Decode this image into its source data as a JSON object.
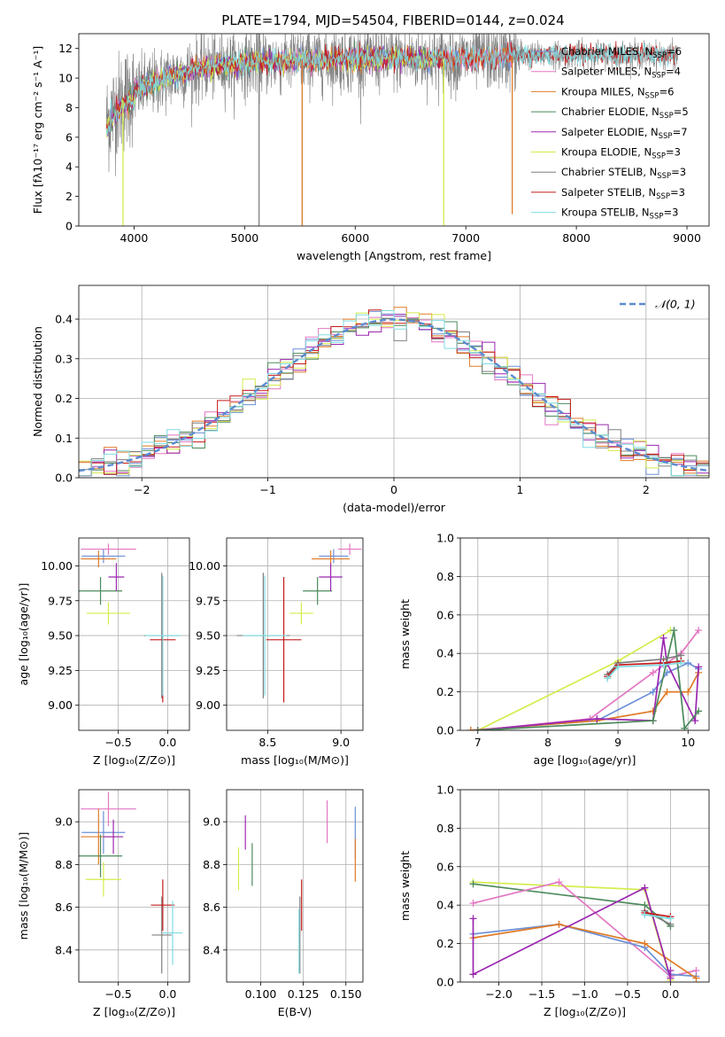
{
  "figure_title": "PLATE=1794, MJD=54504, FIBERID=0144, z=0.024",
  "colors": {
    "Chabrier MILES": "#6b8fd6",
    "Salpeter MILES": "#e377c2",
    "Kroupa MILES": "#e07b27",
    "Chabrier ELODIE": "#4c8a5c",
    "Salpeter ELODIE": "#9b27b0",
    "Kroupa ELODIE": "#d4ec4a",
    "Chabrier STELIB": "#7f7f7f",
    "Salpeter STELIB": "#c41a1a",
    "Kroupa STELIB": "#7fdbe0",
    "normal": "#5b8bd0"
  },
  "chart_data": [
    {
      "id": "spectrum",
      "type": "line",
      "title": "PLATE=1794, MJD=54504, FIBERID=0144, z=0.024",
      "xlabel": "wavelength [Angstrom, rest frame]",
      "ylabel": "Flux [fλ10⁻¹⁷ erg cm⁻² s⁻¹ A⁻¹]",
      "xlim": [
        3500,
        9200
      ],
      "ylim": [
        0,
        13
      ],
      "xticks": [
        4000,
        5000,
        6000,
        7000,
        8000,
        9000
      ],
      "yticks": [
        0,
        2,
        4,
        6,
        8,
        10,
        12
      ],
      "grid": false,
      "legend_position": "top-right",
      "legend": [
        {
          "label": "Chabrier MILES, N",
          "sub": "SSP",
          "n": "=6",
          "color_key": "Chabrier MILES"
        },
        {
          "label": "Salpeter MILES, N",
          "sub": "SSP",
          "n": "=4",
          "color_key": "Salpeter MILES"
        },
        {
          "label": "Kroupa MILES, N",
          "sub": "SSP",
          "n": "=6",
          "color_key": "Kroupa MILES"
        },
        {
          "label": "Chabrier ELODIE, N",
          "sub": "SSP",
          "n": "=5",
          "color_key": "Chabrier ELODIE"
        },
        {
          "label": "Salpeter ELODIE, N",
          "sub": "SSP",
          "n": "=7",
          "color_key": "Salpeter ELODIE"
        },
        {
          "label": "Kroupa ELODIE, N",
          "sub": "SSP",
          "n": "=3",
          "color_key": "Kroupa ELODIE"
        },
        {
          "label": "Chabrier STELIB, N",
          "sub": "SSP",
          "n": "=3",
          "color_key": "Chabrier STELIB"
        },
        {
          "label": "Salpeter STELIB, N",
          "sub": "SSP",
          "n": "=3",
          "color_key": "Salpeter STELIB"
        },
        {
          "label": "Kroupa STELIB, N",
          "sub": "SSP",
          "n": "=3",
          "color_key": "Kroupa STELIB"
        }
      ],
      "continuum": [
        [
          3750,
          7.0
        ],
        [
          3850,
          8.2
        ],
        [
          3950,
          8.8
        ],
        [
          4100,
          9.4
        ],
        [
          4300,
          10.0
        ],
        [
          4600,
          10.7
        ],
        [
          5000,
          11.0
        ],
        [
          5500,
          11.2
        ],
        [
          6000,
          11.3
        ],
        [
          6500,
          11.3
        ],
        [
          7000,
          11.3
        ],
        [
          7500,
          11.5
        ],
        [
          8000,
          11.6
        ],
        [
          8500,
          11.6
        ],
        [
          8900,
          11.5
        ]
      ],
      "spikes": [
        {
          "x": 3900,
          "y": 0,
          "series": "Kroupa ELODIE"
        },
        {
          "x": 5130,
          "y": 0,
          "series": "Chabrier STELIB"
        },
        {
          "x": 5520,
          "y": 0,
          "series": "Kroupa MILES"
        },
        {
          "x": 6800,
          "y": 0,
          "series": "Kroupa ELODIE"
        },
        {
          "x": 7420,
          "y": 0.8,
          "series": "Kroupa MILES"
        }
      ]
    },
    {
      "id": "residuals",
      "type": "line",
      "xlabel": "(data-model)/error",
      "ylabel": "Normed distribution",
      "xlim": [
        -2.5,
        2.5
      ],
      "ylim": [
        0,
        0.485
      ],
      "xticks": [
        -2,
        -1,
        0,
        1,
        2
      ],
      "yticks": [
        0.0,
        0.1,
        0.2,
        0.3,
        0.4
      ],
      "grid": true,
      "legend_position": "top-right",
      "legend": [
        {
          "label": "𝒩(0, 1)",
          "color_key": "normal"
        }
      ],
      "bin_width": 0.1
    },
    {
      "id": "age_vs_Z",
      "type": "scatter",
      "xlabel": "Z [log₁₀(Z/Z⊙)]",
      "ylabel": "age  [log₁₀(age/yr)]",
      "xlim": [
        -0.9,
        0.22
      ],
      "ylim": [
        8.82,
        10.2
      ],
      "xticks": [
        -0.5,
        0.0
      ],
      "yticks": [
        9.0,
        9.25,
        9.5,
        9.75,
        10.0
      ],
      "grid": true,
      "points": [
        {
          "series": "Chabrier MILES",
          "x": -0.65,
          "y": 10.07,
          "xerr": 0.22,
          "yerr": 0.05
        },
        {
          "series": "Salpeter MILES",
          "x": -0.6,
          "y": 10.12,
          "xerr": 0.28,
          "yerr": 0.04
        },
        {
          "series": "Kroupa MILES",
          "x": -0.7,
          "y": 10.05,
          "xerr": 0.18,
          "yerr": 0.06
        },
        {
          "series": "Chabrier ELODIE",
          "x": -0.68,
          "y": 9.82,
          "xerr": 0.22,
          "yerr": 0.1
        },
        {
          "series": "Salpeter ELODIE",
          "x": -0.52,
          "y": 9.92,
          "xerr": 0.08,
          "yerr": 0.1
        },
        {
          "series": "Kroupa ELODIE",
          "x": -0.6,
          "y": 9.66,
          "xerr": 0.22,
          "yerr": 0.08
        },
        {
          "series": "Chabrier STELIB",
          "x": -0.06,
          "y": 9.5,
          "xerr": 0.18,
          "yerr": 0.45
        },
        {
          "series": "Salpeter STELIB",
          "x": -0.05,
          "y": 9.47,
          "xerr": 0.13,
          "yerr": 0.45
        },
        {
          "series": "Kroupa STELIB",
          "x": -0.05,
          "y": 9.5,
          "xerr": 0.18,
          "yerr": 0.43
        }
      ]
    },
    {
      "id": "age_vs_mass",
      "type": "scatter",
      "xlabel": "mass [log₁₀(M/M⊙)]",
      "xlim": [
        8.22,
        9.15
      ],
      "ylim": [
        8.82,
        10.2
      ],
      "xticks": [
        8.5,
        9.0
      ],
      "yticks": [
        9.0,
        9.25,
        9.5,
        9.75,
        10.0
      ],
      "grid": true,
      "points": [
        {
          "series": "Chabrier MILES",
          "x": 8.95,
          "y": 10.07,
          "xerr": 0.1,
          "yerr": 0.05
        },
        {
          "series": "Salpeter MILES",
          "x": 9.06,
          "y": 10.12,
          "xerr": 0.08,
          "yerr": 0.04
        },
        {
          "series": "Kroupa MILES",
          "x": 8.93,
          "y": 10.05,
          "xerr": 0.13,
          "yerr": 0.06
        },
        {
          "series": "Chabrier ELODIE",
          "x": 8.84,
          "y": 9.82,
          "xerr": 0.1,
          "yerr": 0.1
        },
        {
          "series": "Salpeter ELODIE",
          "x": 8.93,
          "y": 9.92,
          "xerr": 0.08,
          "yerr": 0.1
        },
        {
          "series": "Kroupa ELODIE",
          "x": 8.73,
          "y": 9.66,
          "xerr": 0.08,
          "yerr": 0.08
        },
        {
          "series": "Chabrier STELIB",
          "x": 8.47,
          "y": 9.5,
          "xerr": 0.18,
          "yerr": 0.45
        },
        {
          "series": "Salpeter STELIB",
          "x": 8.61,
          "y": 9.47,
          "xerr": 0.12,
          "yerr": 0.45
        },
        {
          "series": "Kroupa STELIB",
          "x": 8.48,
          "y": 9.5,
          "xerr": 0.15,
          "yerr": 0.43
        }
      ]
    },
    {
      "id": "weight_vs_age",
      "type": "line",
      "xlabel": "age  [log₁₀(age/yr)]",
      "ylabel": "mass weight",
      "xlim": [
        6.75,
        10.3
      ],
      "ylim": [
        0,
        1
      ],
      "xticks": [
        7,
        8,
        9,
        10
      ],
      "yticks": [
        0.0,
        0.2,
        0.4,
        0.6,
        0.8,
        1.0
      ],
      "grid": true,
      "series": [
        {
          "name": "Kroupa ELODIE",
          "x": [
            7.0,
            9.0,
            9.75
          ],
          "y": [
            0.0,
            0.36,
            0.52
          ]
        },
        {
          "name": "Chabrier MILES",
          "x": [
            6.9,
            8.7,
            9.5,
            9.7,
            10.0,
            10.15
          ],
          "y": [
            0.0,
            0.05,
            0.2,
            0.3,
            0.35,
            0.32
          ]
        },
        {
          "name": "Kroupa MILES",
          "x": [
            6.9,
            8.7,
            9.5,
            9.7,
            10.0,
            10.15
          ],
          "y": [
            0.0,
            0.05,
            0.1,
            0.2,
            0.2,
            0.3
          ]
        },
        {
          "name": "Salpeter MILES",
          "x": [
            7.0,
            8.6,
            9.5,
            9.9,
            10.15
          ],
          "y": [
            0.0,
            0.06,
            0.3,
            0.4,
            0.52
          ]
        },
        {
          "name": "Salpeter ELODIE",
          "x": [
            7.0,
            8.7,
            9.5,
            9.65,
            9.7,
            10.1,
            10.15
          ],
          "y": [
            0.0,
            0.06,
            0.05,
            0.48,
            0.35,
            0.05,
            0.33
          ]
        },
        {
          "name": "Chabrier ELODIE",
          "x": [
            7.0,
            9.5,
            9.8,
            9.95,
            10.15
          ],
          "y": [
            0.0,
            0.05,
            0.52,
            0.01,
            0.1
          ]
        },
        {
          "name": "Chabrier STELIB",
          "x": [
            8.85,
            9.0,
            9.65,
            9.9
          ],
          "y": [
            0.29,
            0.35,
            0.37,
            0.39
          ]
        },
        {
          "name": "Salpeter STELIB",
          "x": [
            8.85,
            9.0,
            9.65,
            9.9
          ],
          "y": [
            0.28,
            0.34,
            0.35,
            0.36
          ]
        },
        {
          "name": "Kroupa STELIB",
          "x": [
            8.85,
            9.0,
            9.65,
            9.9
          ],
          "y": [
            0.27,
            0.33,
            0.34,
            0.35
          ]
        }
      ]
    },
    {
      "id": "mass_vs_Z",
      "type": "scatter",
      "xlabel": "Z [log₁₀(Z/Z⊙)]",
      "ylabel": "mass [log₁₀(M/M⊙)]",
      "xlim": [
        -0.9,
        0.22
      ],
      "ylim": [
        8.25,
        9.15
      ],
      "xticks": [
        -0.5,
        0.0
      ],
      "yticks": [
        8.4,
        8.6,
        8.8,
        9.0
      ],
      "grid": true,
      "points": [
        {
          "series": "Chabrier MILES",
          "x": -0.65,
          "y": 8.95,
          "xerr": 0.22,
          "yerr": 0.1
        },
        {
          "series": "Salpeter MILES",
          "x": -0.6,
          "y": 9.06,
          "xerr": 0.28,
          "yerr": 0.08
        },
        {
          "series": "Kroupa MILES",
          "x": -0.7,
          "y": 8.93,
          "xerr": 0.18,
          "yerr": 0.13
        },
        {
          "series": "Chabrier ELODIE",
          "x": -0.68,
          "y": 8.84,
          "xerr": 0.22,
          "yerr": 0.1
        },
        {
          "series": "Salpeter ELODIE",
          "x": -0.55,
          "y": 8.93,
          "xerr": 0.1,
          "yerr": 0.08
        },
        {
          "series": "Kroupa ELODIE",
          "x": -0.65,
          "y": 8.73,
          "xerr": 0.18,
          "yerr": 0.08
        },
        {
          "series": "Chabrier STELIB",
          "x": -0.06,
          "y": 8.47,
          "xerr": 0.1,
          "yerr": 0.18
        },
        {
          "series": "Salpeter STELIB",
          "x": -0.05,
          "y": 8.61,
          "xerr": 0.12,
          "yerr": 0.12
        },
        {
          "series": "Kroupa STELIB",
          "x": 0.05,
          "y": 8.48,
          "xerr": 0.1,
          "yerr": 0.15
        }
      ]
    },
    {
      "id": "mass_vs_ebv",
      "type": "scatter",
      "xlabel": "E(B-V)",
      "xlim": [
        0.08,
        0.16
      ],
      "ylim": [
        8.25,
        9.15
      ],
      "xticks": [
        0.1,
        0.125,
        0.15
      ],
      "yticks": [
        8.4,
        8.6,
        8.8,
        9.0
      ],
      "grid": true,
      "points": [
        {
          "series": "Chabrier MILES",
          "x": 0.1555,
          "y": 8.95,
          "yerr": 0.12
        },
        {
          "series": "Salpeter MILES",
          "x": 0.139,
          "y": 9.0,
          "yerr": 0.1
        },
        {
          "series": "Kroupa MILES",
          "x": 0.1555,
          "y": 8.82,
          "yerr": 0.1
        },
        {
          "series": "Chabrier ELODIE",
          "x": 0.095,
          "y": 8.8,
          "yerr": 0.1
        },
        {
          "series": "Salpeter ELODIE",
          "x": 0.091,
          "y": 8.95,
          "yerr": 0.08
        },
        {
          "series": "Kroupa ELODIE",
          "x": 0.087,
          "y": 8.78,
          "yerr": 0.1
        },
        {
          "series": "Chabrier STELIB",
          "x": 0.123,
          "y": 8.47,
          "yerr": 0.18
        },
        {
          "series": "Salpeter STELIB",
          "x": 0.124,
          "y": 8.61,
          "yerr": 0.12
        },
        {
          "series": "Kroupa STELIB",
          "x": 0.1225,
          "y": 8.44,
          "yerr": 0.15
        }
      ]
    },
    {
      "id": "weight_vs_Z",
      "type": "line",
      "xlabel": "Z [log₁₀(Z/Z⊙)]",
      "ylabel": "mass weight",
      "xlim": [
        -2.45,
        0.45
      ],
      "ylim": [
        0,
        1
      ],
      "xticks": [
        -2.0,
        -1.5,
        -1.0,
        -0.5,
        0.0
      ],
      "yticks": [
        0.0,
        0.2,
        0.4,
        0.6,
        0.8,
        1.0
      ],
      "grid": true,
      "series": [
        {
          "name": "Kroupa ELODIE",
          "x": [
            -2.3,
            -0.3,
            0.0
          ],
          "y": [
            0.52,
            0.48,
            0.01
          ]
        },
        {
          "name": "Chabrier ELODIE",
          "x": [
            -2.3,
            -0.3,
            0.0
          ],
          "y": [
            0.51,
            0.4,
            0.29
          ]
        },
        {
          "name": "Salpeter MILES",
          "x": [
            -2.3,
            -1.3,
            0.0,
            0.3
          ],
          "y": [
            0.41,
            0.52,
            0.03,
            0.06
          ]
        },
        {
          "name": "Chabrier MILES",
          "x": [
            -2.3,
            -1.3,
            -0.3,
            0.0,
            0.3
          ],
          "y": [
            0.25,
            0.3,
            0.18,
            0.04,
            0.03
          ]
        },
        {
          "name": "Kroupa MILES",
          "x": [
            -2.3,
            -1.3,
            -0.3,
            0.3
          ],
          "y": [
            0.23,
            0.3,
            0.2,
            0.02
          ]
        },
        {
          "name": "Salpeter ELODIE",
          "x": [
            -2.3,
            -2.3,
            -0.3,
            0.0,
            0.0
          ],
          "y": [
            0.33,
            0.04,
            0.49,
            0.02,
            0.06
          ]
        },
        {
          "name": "Chabrier STELIB",
          "x": [
            -0.3,
            0.0
          ],
          "y": [
            0.37,
            0.3
          ]
        },
        {
          "name": "Salpeter STELIB",
          "x": [
            -0.3,
            0.0
          ],
          "y": [
            0.36,
            0.34
          ]
        },
        {
          "name": "Kroupa STELIB",
          "x": [
            -0.3,
            0.0
          ],
          "y": [
            0.35,
            0.33
          ]
        }
      ]
    }
  ]
}
